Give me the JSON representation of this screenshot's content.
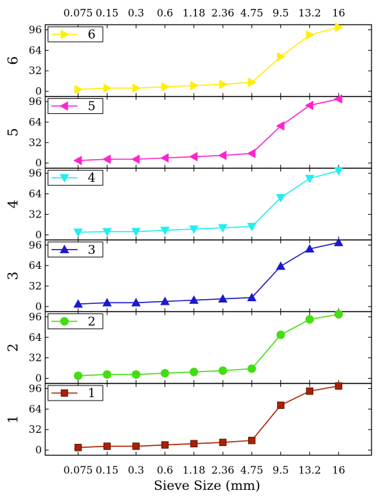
{
  "chart_data": {
    "type": "line",
    "xlabel": "Sieve Size (mm)",
    "categories": [
      "0.075",
      "0.15",
      "0.3",
      "0.6",
      "1.18",
      "2.36",
      "4.75",
      "9.5",
      "13.2",
      "16"
    ],
    "yticks": [
      0,
      32,
      64,
      96
    ],
    "ylim": [
      -8,
      104
    ],
    "grid": false,
    "legend_position": "top-left",
    "panels": [
      {
        "ylabel": "6",
        "legend": "6",
        "color": "#ffee00",
        "marker": "triangle-right",
        "values": [
          3,
          5,
          5,
          7,
          9,
          11,
          14,
          54,
          88,
          100
        ]
      },
      {
        "ylabel": "5",
        "legend": "5",
        "color": "#ff22cc",
        "marker": "triangle-left",
        "values": [
          4,
          6,
          6,
          8,
          10,
          12,
          15,
          58,
          90,
          100
        ]
      },
      {
        "ylabel": "4",
        "legend": "4",
        "color": "#22eef0",
        "marker": "triangle-down",
        "values": [
          4,
          5,
          5,
          7,
          9,
          11,
          13,
          58,
          88,
          100
        ]
      },
      {
        "ylabel": "3",
        "legend": "3",
        "color": "#1a1acc",
        "marker": "triangle-up",
        "values": [
          4,
          6,
          6,
          8,
          10,
          12,
          14,
          63,
          90,
          100
        ]
      },
      {
        "ylabel": "2",
        "legend": "2",
        "color": "#44dd11",
        "marker": "circle",
        "values": [
          4,
          6,
          6,
          8,
          10,
          12,
          15,
          68,
          92,
          100
        ]
      },
      {
        "ylabel": "1",
        "legend": "1",
        "color": "#aa2200",
        "marker": "square",
        "values": [
          4,
          6,
          6,
          8,
          10,
          12,
          15,
          70,
          92,
          100
        ]
      }
    ]
  }
}
